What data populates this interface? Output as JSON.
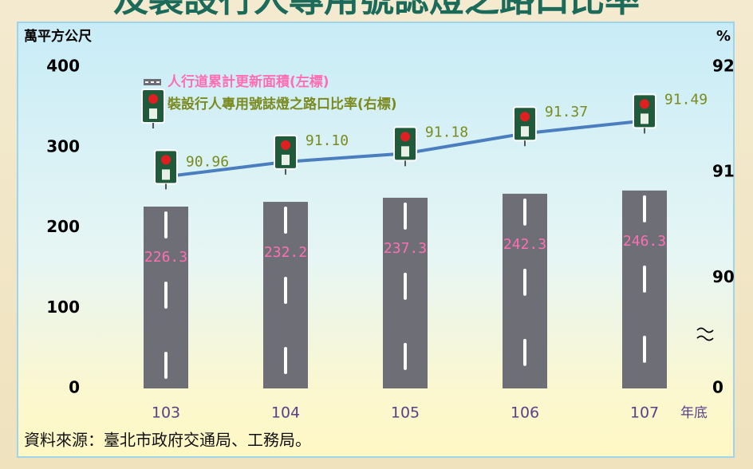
{
  "chart_data": {
    "type": "bar",
    "title": "及裝設行人專用號誌燈之路口比率",
    "y_label": "萬平方公尺",
    "y2_label": "%",
    "x_label": "年底",
    "source": "資料來源：臺北市政府交通局、工務局。",
    "categories": [
      "103",
      "104",
      "105",
      "106",
      "107"
    ],
    "ylim": [
      0,
      400
    ],
    "yticks": [
      0,
      100,
      200,
      300,
      400
    ],
    "y2lim": [
      0,
      92
    ],
    "y2ticks": [
      0,
      90,
      91,
      92
    ],
    "y2_break": [
      0,
      90
    ],
    "legend": "upper left",
    "series": [
      {
        "name": "人行道累計更新面積(左標)",
        "type": "bar",
        "color": "#6e6f76",
        "label_color": "#ff6eb4",
        "values": [
          226.3,
          232.2,
          237.3,
          242.3,
          246.3
        ]
      },
      {
        "name": "裝設行人專用號誌燈之路口比率(右標)",
        "type": "line",
        "axis": "y2",
        "color": "#4a7ebf",
        "label_color": "#7a8a1e",
        "values": [
          90.96,
          91.1,
          91.18,
          91.37,
          91.49
        ],
        "value_labels": [
          "90.96",
          "91.10",
          "91.18",
          "91.37",
          "91.49"
        ]
      }
    ]
  }
}
